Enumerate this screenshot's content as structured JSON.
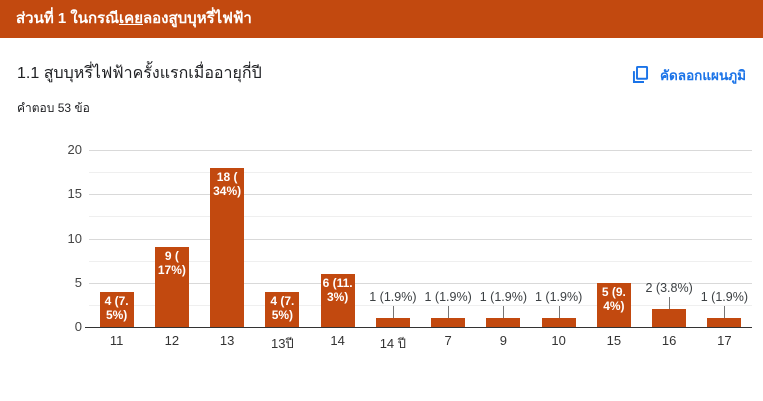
{
  "section_header": {
    "title_prefix": "ส่วนที่ 1 ในกรณี",
    "title_underlined": "เคย",
    "title_suffix": "ลองสูบบุหรี่ไฟฟ้า"
  },
  "question": {
    "title": "1.1 สูบบุหรี่ไฟฟ้าครั้งแรกเมื่ออายุกี่ปี",
    "responses_count": "คำตอบ 53 ข้อ"
  },
  "toolbar": {
    "copy_chart_label": "คัดลอกแผนภูมิ",
    "copy_icon": "content-copy-icon"
  },
  "colors": {
    "accent": "#c2490f",
    "link_blue": "#1a73e8",
    "grid_major": "#d9d9d9",
    "grid_minor": "#efefef",
    "axis_baseline": "#333333",
    "outside_label": "#3c4043",
    "inside_label": "#ffffff"
  },
  "chart_data": {
    "type": "bar",
    "title": "1.1 สูบบุหรี่ไฟฟ้าครั้งแรกเมื่ออายุกี่ปี",
    "categories": [
      "11",
      "12",
      "13",
      "13ปี",
      "14",
      "14 ปี",
      "7",
      "9",
      "10",
      "15",
      "16",
      "17"
    ],
    "values": [
      4,
      9,
      18,
      4,
      6,
      1,
      1,
      1,
      1,
      5,
      2,
      1
    ],
    "labels": [
      "4 (7.5%)",
      "9 (17%)",
      "18 (34%)",
      "4 (7.5%)",
      "6 (11.3%)",
      "1 (1.9%)",
      "1 (1.9%)",
      "1 (1.9%)",
      "1 (1.9%)",
      "5 (9.4%)",
      "2 (3.8%)",
      "1 (1.9%)"
    ],
    "label_lines": [
      [
        "4 (7.",
        "5%)"
      ],
      [
        "9 (",
        "17%)"
      ],
      [
        "18 (",
        "34%)"
      ],
      [
        "4 (7.",
        "5%)"
      ],
      [
        "6 (11.",
        "3%)"
      ],
      null,
      null,
      null,
      null,
      [
        "5 (9.",
        "4%)"
      ],
      null,
      null
    ],
    "label_position": [
      "inside",
      "inside",
      "inside",
      "inside",
      "inside",
      "outside",
      "outside",
      "outside",
      "outside",
      "inside",
      "outside",
      "outside"
    ],
    "xlabel": "",
    "ylabel": "",
    "ylim": [
      0,
      20
    ],
    "yticks": [
      0,
      5,
      10,
      15,
      20
    ],
    "minor_yticks": [
      2.5,
      7.5,
      12.5,
      17.5
    ],
    "grid": true,
    "legend": "none",
    "bar_color": "#c2490f",
    "total_responses": 53
  }
}
